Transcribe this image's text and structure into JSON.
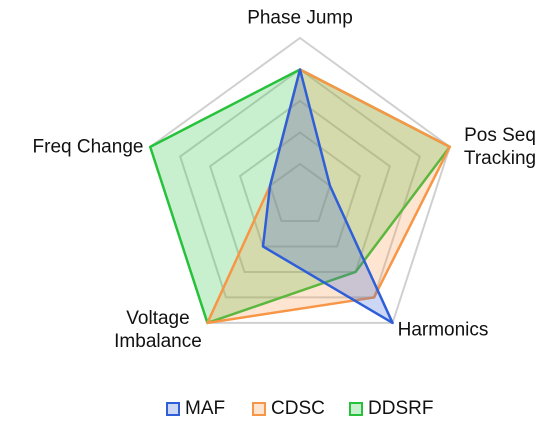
{
  "chart_data": {
    "type": "radar",
    "categories": [
      "Phase Jump",
      "Pos Seq Tracking",
      "Harmonics",
      "Voltage Imbalance",
      "Freq Change"
    ],
    "series": [
      {
        "name": "MAF",
        "color": "#2f5fd8",
        "values": [
          4,
          1,
          5,
          2,
          1
        ]
      },
      {
        "name": "CDSC",
        "color": "#f79646",
        "values": [
          4,
          5,
          4,
          5,
          1
        ]
      },
      {
        "name": "DDSRF",
        "color": "#27c23b",
        "values": [
          4,
          5,
          3,
          5,
          5
        ]
      }
    ],
    "rlim": [
      0,
      5
    ],
    "rticks": [
      1,
      2,
      3,
      4,
      5
    ],
    "grid": true,
    "legend": "bottom"
  }
}
